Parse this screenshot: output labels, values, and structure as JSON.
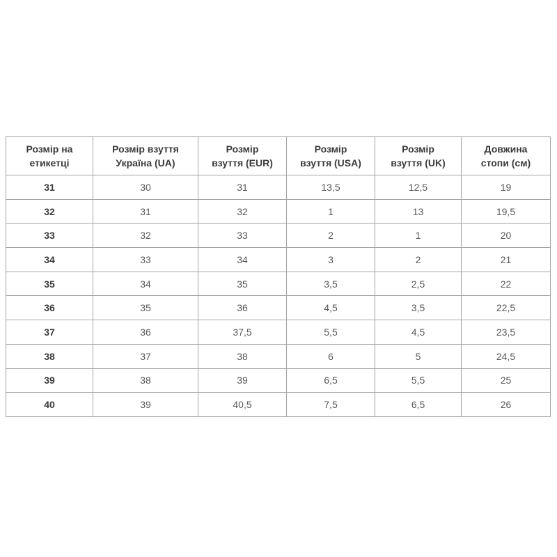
{
  "page": {
    "background_color": "#ffffff",
    "border_color": "#a3a3a3",
    "header_text_color": "#3b3b3b",
    "cell_text_color": "#585858"
  },
  "table": {
    "headers": [
      {
        "line1": "Розмір на",
        "line2": "етикетці"
      },
      {
        "line1": "Розмір взуття",
        "line2": "Україна (UA)"
      },
      {
        "line1": "Розмір",
        "line2": "взуття (EUR)"
      },
      {
        "line1": "Розмір",
        "line2": "взуття (USA)"
      },
      {
        "line1": "Розмір",
        "line2": "взуття (UK)"
      },
      {
        "line1": "Довжина",
        "line2": "стопи (см)"
      }
    ],
    "rows": [
      [
        "31",
        "30",
        "31",
        "13,5",
        "12,5",
        "19"
      ],
      [
        "32",
        "31",
        "32",
        "1",
        "13",
        "19,5"
      ],
      [
        "33",
        "32",
        "33",
        "2",
        "1",
        "20"
      ],
      [
        "34",
        "33",
        "34",
        "3",
        "2",
        "21"
      ],
      [
        "35",
        "34",
        "35",
        "3,5",
        "2,5",
        "22"
      ],
      [
        "36",
        "35",
        "36",
        "4,5",
        "3,5",
        "22,5"
      ],
      [
        "37",
        "36",
        "37,5",
        "5,5",
        "4,5",
        "23,5"
      ],
      [
        "38",
        "37",
        "38",
        "6",
        "5",
        "24,5"
      ],
      [
        "39",
        "38",
        "39",
        "6,5",
        "5,5",
        "25"
      ],
      [
        "40",
        "39",
        "40,5",
        "7,5",
        "6,5",
        "26"
      ]
    ]
  },
  "chart_data": {
    "type": "table",
    "title": "",
    "columns": [
      "Розмір на етикетці",
      "Розмір взуття Україна (UA)",
      "Розмір взуття (EUR)",
      "Розмір взуття (USA)",
      "Розмір взуття (UK)",
      "Довжина стопи (см)"
    ],
    "rows": [
      [
        "31",
        "30",
        "31",
        "13,5",
        "12,5",
        "19"
      ],
      [
        "32",
        "31",
        "32",
        "1",
        "13",
        "19,5"
      ],
      [
        "33",
        "32",
        "33",
        "2",
        "1",
        "20"
      ],
      [
        "34",
        "33",
        "34",
        "3",
        "2",
        "21"
      ],
      [
        "35",
        "34",
        "35",
        "3,5",
        "2,5",
        "22"
      ],
      [
        "36",
        "35",
        "36",
        "4,5",
        "3,5",
        "22,5"
      ],
      [
        "37",
        "36",
        "37,5",
        "5,5",
        "4,5",
        "23,5"
      ],
      [
        "38",
        "37",
        "38",
        "6",
        "5",
        "24,5"
      ],
      [
        "39",
        "38",
        "39",
        "6,5",
        "5,5",
        "25"
      ],
      [
        "40",
        "39",
        "40,5",
        "7,5",
        "6,5",
        "26"
      ]
    ]
  }
}
